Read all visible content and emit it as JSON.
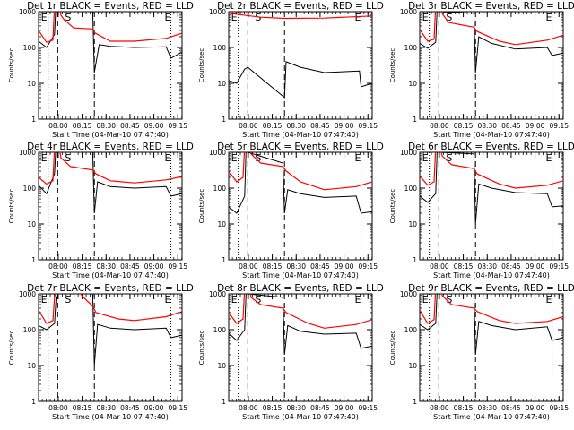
{
  "chart_data": {
    "type": "line",
    "x_tick_labels": [
      "08:00",
      "08:15",
      "08:30",
      "08:45",
      "09:00",
      "09:15"
    ],
    "y_tick_labels": [
      "1",
      "10",
      "100",
      "1000"
    ],
    "yscale": "log",
    "ylim": [
      1,
      1000
    ],
    "xlabel": "Start Time (04-Mar-10 07:47:40)",
    "ylabel": "Counts/sec",
    "colors": {
      "events": "#000000",
      "lld": "#ff0000"
    },
    "vertical_markers": {
      "dotted_minutes": [
        6,
        83
      ],
      "dashed_minutes": [
        12,
        35
      ],
      "labels": [
        "E",
        "S",
        "E"
      ]
    },
    "panels": [
      {
        "title": "Det 1r BLACK = Events, RED = LLD",
        "events": [
          [
            0,
            150
          ],
          [
            5,
            100
          ],
          [
            10,
            230
          ],
          [
            11,
            2000
          ],
          [
            12,
            1000
          ],
          [
            34,
            1000
          ],
          [
            35,
            20
          ],
          [
            38,
            120
          ],
          [
            45,
            108
          ],
          [
            60,
            100
          ],
          [
            80,
            105
          ],
          [
            83,
            50
          ],
          [
            90,
            75
          ]
        ],
        "lld": [
          [
            0,
            300
          ],
          [
            5,
            140
          ],
          [
            9,
            160
          ],
          [
            10,
            1500
          ],
          [
            11,
            6000
          ],
          [
            14,
            800
          ],
          [
            16,
            600
          ],
          [
            22,
            350
          ],
          [
            34,
            330
          ],
          [
            35,
            260
          ],
          [
            45,
            150
          ],
          [
            60,
            150
          ],
          [
            80,
            180
          ],
          [
            90,
            250
          ]
        ]
      },
      {
        "title": "Det 2r BLACK = Events, RED = LLD",
        "events": [
          [
            0,
            12
          ],
          [
            5,
            10
          ],
          [
            10,
            25
          ],
          [
            12,
            28
          ],
          [
            35,
            4
          ],
          [
            36,
            40
          ],
          [
            45,
            28
          ],
          [
            60,
            20
          ],
          [
            82,
            22
          ],
          [
            83,
            8
          ],
          [
            90,
            10
          ]
        ],
        "lld": [
          [
            0,
            900
          ],
          [
            20,
            700
          ],
          [
            35,
            650
          ],
          [
            60,
            660
          ],
          [
            90,
            760
          ]
        ]
      },
      {
        "title": "Det 3r BLACK = Events, RED = LLD",
        "events": [
          [
            0,
            130
          ],
          [
            5,
            95
          ],
          [
            10,
            140
          ],
          [
            11,
            1500
          ],
          [
            12,
            1000
          ],
          [
            34,
            900
          ],
          [
            35,
            20
          ],
          [
            37,
            200
          ],
          [
            45,
            130
          ],
          [
            60,
            90
          ],
          [
            80,
            100
          ],
          [
            83,
            60
          ],
          [
            90,
            70
          ]
        ],
        "lld": [
          [
            0,
            320
          ],
          [
            5,
            150
          ],
          [
            9,
            170
          ],
          [
            10,
            1500
          ],
          [
            11,
            5000
          ],
          [
            14,
            900
          ],
          [
            18,
            500
          ],
          [
            34,
            370
          ],
          [
            36,
            280
          ],
          [
            50,
            150
          ],
          [
            60,
            120
          ],
          [
            80,
            160
          ],
          [
            90,
            220
          ]
        ]
      },
      {
        "title": "Det 4r BLACK = Events, RED = LLD",
        "events": [
          [
            0,
            120
          ],
          [
            5,
            70
          ],
          [
            10,
            250
          ],
          [
            11,
            2000
          ],
          [
            12,
            1000
          ],
          [
            34,
            1000
          ],
          [
            35,
            20
          ],
          [
            37,
            150
          ],
          [
            45,
            110
          ],
          [
            60,
            100
          ],
          [
            80,
            110
          ],
          [
            83,
            60
          ],
          [
            90,
            70
          ]
        ],
        "lld": [
          [
            0,
            200
          ],
          [
            5,
            130
          ],
          [
            9,
            160
          ],
          [
            10,
            1400
          ],
          [
            11,
            5000
          ],
          [
            14,
            700
          ],
          [
            20,
            400
          ],
          [
            34,
            320
          ],
          [
            36,
            250
          ],
          [
            45,
            160
          ],
          [
            60,
            140
          ],
          [
            80,
            170
          ],
          [
            90,
            210
          ]
        ]
      },
      {
        "title": "Det 5r BLACK = Events, RED = LLD",
        "events": [
          [
            0,
            30
          ],
          [
            5,
            20
          ],
          [
            10,
            60
          ],
          [
            11,
            2000
          ],
          [
            12,
            1000
          ],
          [
            34,
            500
          ],
          [
            35,
            20
          ],
          [
            37,
            90
          ],
          [
            45,
            70
          ],
          [
            60,
            55
          ],
          [
            80,
            60
          ],
          [
            83,
            20
          ],
          [
            90,
            22
          ]
        ],
        "lld": [
          [
            0,
            300
          ],
          [
            5,
            150
          ],
          [
            9,
            200
          ],
          [
            10,
            1500
          ],
          [
            11,
            6000
          ],
          [
            14,
            900
          ],
          [
            20,
            500
          ],
          [
            34,
            400
          ],
          [
            36,
            300
          ],
          [
            45,
            150
          ],
          [
            60,
            90
          ],
          [
            80,
            110
          ],
          [
            90,
            150
          ]
        ]
      },
      {
        "title": "Det 6r BLACK = Events, RED = LLD",
        "events": [
          [
            0,
            60
          ],
          [
            5,
            40
          ],
          [
            10,
            70
          ],
          [
            11,
            1500
          ],
          [
            12,
            1000
          ],
          [
            34,
            900
          ],
          [
            35,
            10
          ],
          [
            37,
            130
          ],
          [
            45,
            100
          ],
          [
            60,
            75
          ],
          [
            80,
            70
          ],
          [
            83,
            30
          ],
          [
            90,
            32
          ]
        ],
        "lld": [
          [
            0,
            220
          ],
          [
            5,
            120
          ],
          [
            9,
            150
          ],
          [
            10,
            1400
          ],
          [
            11,
            4000
          ],
          [
            14,
            800
          ],
          [
            20,
            450
          ],
          [
            34,
            350
          ],
          [
            36,
            250
          ],
          [
            50,
            130
          ],
          [
            60,
            100
          ],
          [
            80,
            120
          ],
          [
            90,
            160
          ]
        ]
      },
      {
        "title": "Det 7r BLACK = Events, RED = LLD",
        "events": [
          [
            0,
            130
          ],
          [
            5,
            100
          ],
          [
            10,
            150
          ],
          [
            11,
            800
          ],
          [
            12,
            1000
          ],
          [
            34,
            1000
          ],
          [
            35,
            10
          ],
          [
            37,
            140
          ],
          [
            45,
            110
          ],
          [
            60,
            100
          ],
          [
            80,
            110
          ],
          [
            83,
            60
          ],
          [
            90,
            70
          ]
        ],
        "lld": [
          [
            0,
            350
          ],
          [
            5,
            150
          ],
          [
            9,
            180
          ],
          [
            10,
            800
          ],
          [
            14,
            5000
          ],
          [
            18,
            6000
          ],
          [
            22,
            3000
          ],
          [
            27,
            900
          ],
          [
            34,
            450
          ],
          [
            36,
            300
          ],
          [
            50,
            200
          ],
          [
            60,
            180
          ],
          [
            80,
            230
          ],
          [
            90,
            320
          ]
        ]
      },
      {
        "title": "Det 8r BLACK = Events, RED = LLD",
        "events": [
          [
            0,
            80
          ],
          [
            5,
            50
          ],
          [
            10,
            100
          ],
          [
            11,
            1500
          ],
          [
            12,
            1000
          ],
          [
            34,
            800
          ],
          [
            35,
            20
          ],
          [
            37,
            130
          ],
          [
            45,
            90
          ],
          [
            60,
            75
          ],
          [
            80,
            80
          ],
          [
            83,
            30
          ],
          [
            90,
            35
          ]
        ],
        "lld": [
          [
            0,
            300
          ],
          [
            5,
            150
          ],
          [
            9,
            200
          ],
          [
            10,
            1400
          ],
          [
            11,
            5000
          ],
          [
            14,
            800
          ],
          [
            20,
            500
          ],
          [
            34,
            400
          ],
          [
            36,
            300
          ],
          [
            50,
            150
          ],
          [
            60,
            110
          ],
          [
            80,
            140
          ],
          [
            90,
            190
          ]
        ]
      },
      {
        "title": "Det 9r BLACK = Events, RED = LLD",
        "events": [
          [
            0,
            140
          ],
          [
            5,
            100
          ],
          [
            10,
            150
          ],
          [
            11,
            1500
          ],
          [
            12,
            1000
          ],
          [
            34,
            1000
          ],
          [
            35,
            20
          ],
          [
            37,
            170
          ],
          [
            45,
            130
          ],
          [
            60,
            100
          ],
          [
            80,
            120
          ],
          [
            83,
            50
          ],
          [
            90,
            60
          ]
        ],
        "lld": [
          [
            0,
            350
          ],
          [
            5,
            150
          ],
          [
            9,
            190
          ],
          [
            10,
            1500
          ],
          [
            11,
            6000
          ],
          [
            14,
            900
          ],
          [
            20,
            500
          ],
          [
            34,
            400
          ],
          [
            36,
            320
          ],
          [
            50,
            180
          ],
          [
            60,
            150
          ],
          [
            80,
            170
          ],
          [
            90,
            230
          ]
        ]
      }
    ]
  }
}
